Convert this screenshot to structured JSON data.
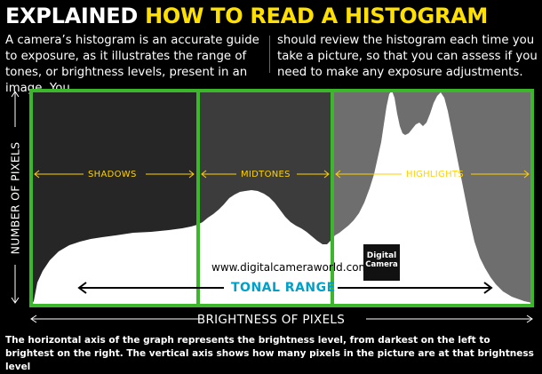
{
  "header": {
    "prefix": "EXPLAINED",
    "title": "HOW TO READ A HISTOGRAM"
  },
  "intro": {
    "left": "A camera’s histogram is an accurate guide to exposure, as it illustrates the range of tones, or brightness levels, present in an image. You",
    "right": "should review the histogram each time you take a picture, so that you can assess if you need to make any exposure adjustments."
  },
  "axes": {
    "y_label": "NUMBER OF PIXELS",
    "x_label": "BRIGHTNESS OF PIXELS"
  },
  "zones": [
    {
      "label": "SHADOWS",
      "color": "#262626"
    },
    {
      "label": "MIDTONES",
      "color": "#3c3c3c"
    },
    {
      "label": "HIGHLIGHTS",
      "color": "#6e6e6e"
    }
  ],
  "range_label": "TONAL RANGE",
  "watermark": "www.digitalcameraworld.com",
  "logo": {
    "line1": "Digital",
    "line2": "Camera"
  },
  "caption": "The horizontal axis of the graph represents the brightness level, from darkest on the left to brightest on the right. The vertical axis shows how many pixels in the picture are at that brightness level",
  "colors": {
    "title_accent": "#ffe000",
    "zone_border": "#3cb62a",
    "zone_arrow": "#ffd200",
    "tonal_range": "#00a0c8",
    "histogram": "#ffffff"
  }
}
